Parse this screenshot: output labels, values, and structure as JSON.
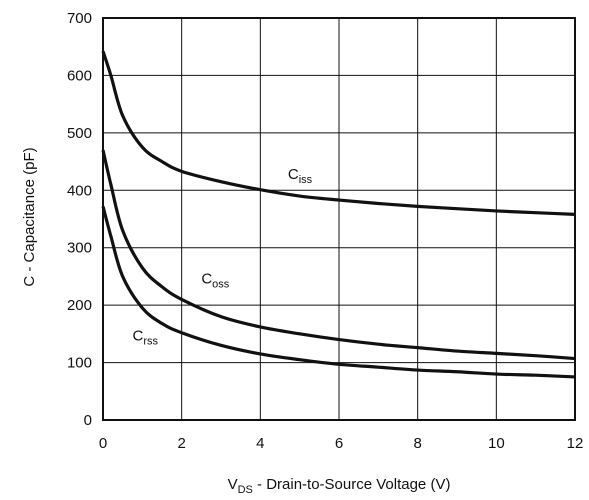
{
  "chart_data": {
    "type": "line",
    "title": "",
    "xlabel": {
      "main": "V",
      "sub": "DS",
      "rest": " - Drain-to-Source Voltage (V)"
    },
    "ylabel": "C - Capacitance (pF)",
    "xlim": [
      0,
      12
    ],
    "ylim": [
      0,
      700
    ],
    "xticks": [
      0,
      2,
      4,
      6,
      8,
      10,
      12
    ],
    "yticks": [
      0,
      100,
      200,
      300,
      400,
      500,
      600,
      700
    ],
    "grid": true,
    "legend": "inline",
    "series": [
      {
        "name": "Ciss",
        "label_main": "C",
        "label_sub": "iss",
        "label_at": [
          4.7,
          420
        ],
        "x": [
          0,
          0.2,
          0.5,
          1,
          1.5,
          2,
          3,
          4,
          5,
          6,
          7,
          8,
          9,
          10,
          11,
          12
        ],
        "y": [
          642,
          600,
          530,
          475,
          450,
          433,
          415,
          401,
          390,
          383,
          377,
          372,
          368,
          364,
          361,
          358
        ]
      },
      {
        "name": "Coss",
        "label_main": "C",
        "label_sub": "oss",
        "label_at": [
          2.5,
          238
        ],
        "x": [
          0,
          0.2,
          0.5,
          1,
          1.5,
          2,
          3,
          4,
          5,
          6,
          7,
          8,
          9,
          10,
          11,
          12
        ],
        "y": [
          470,
          410,
          330,
          265,
          232,
          210,
          180,
          162,
          150,
          140,
          132,
          126,
          120,
          116,
          112,
          107
        ]
      },
      {
        "name": "Crss",
        "label_main": "C",
        "label_sub": "rss",
        "label_at": [
          0.75,
          138
        ],
        "x": [
          0,
          0.2,
          0.5,
          1,
          1.5,
          2,
          3,
          4,
          5,
          6,
          7,
          8,
          9,
          10,
          11,
          12
        ],
        "y": [
          372,
          320,
          250,
          195,
          168,
          152,
          130,
          115,
          105,
          97,
          92,
          87,
          84,
          80,
          78,
          75
        ]
      }
    ]
  }
}
